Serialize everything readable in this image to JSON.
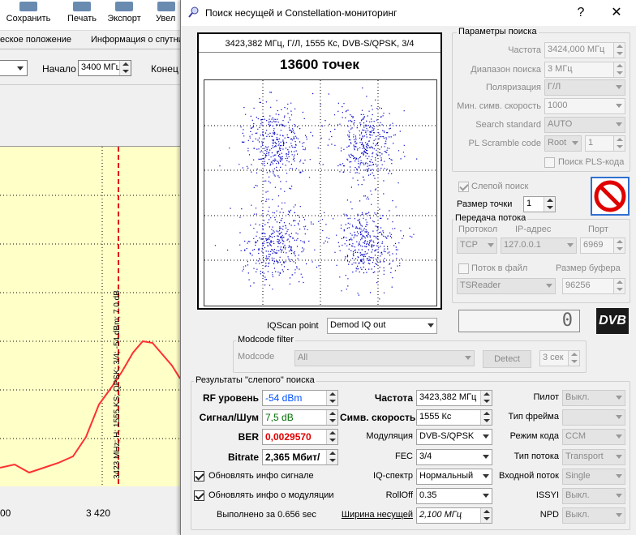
{
  "background_app": {
    "toolbar": [
      {
        "label": "Сохранить",
        "icon": "save-icon"
      },
      {
        "label": "Печать",
        "icon": "print-icon"
      },
      {
        "label": "Экспорт",
        "icon": "export-icon"
      },
      {
        "label": "Увел",
        "icon": "zoom-icon"
      }
    ],
    "tabs": [
      "еское положение",
      "Информация о спутни"
    ],
    "start_label": "Начало",
    "start_value": "3400 МГц",
    "end_label": "Конец",
    "marker_label": "3423 MHz; H; 1555 KS; QPSK; 3/4; -54 dBm; 7.0 dB",
    "x_ticks": [
      "00",
      "3 420"
    ]
  },
  "dialog": {
    "title": "Поиск несущей и Constellation-мониторинг",
    "help_btn": "?",
    "close_btn": "✕",
    "constellation": {
      "info": "3423,382 МГц, Г/Л, 1555 Кс, DVB-S/QPSK, 3/4",
      "points_label": "13600 точек",
      "clusters": [
        {
          "i": -0.5,
          "q": 0.5
        },
        {
          "i": 0.5,
          "q": 0.5
        },
        {
          "i": -0.5,
          "q": -0.5
        },
        {
          "i": 0.5,
          "q": -0.5
        }
      ],
      "point_color": "#0000c8"
    },
    "search_params": {
      "group_label": "Параметры поиска",
      "frequency_label": "Частота",
      "frequency_value": "3424,000 МГц",
      "range_label": "Диапазон поиска",
      "range_value": "3 МГц",
      "polarization_label": "Поляризация",
      "polarization_value": "Г/Л",
      "min_sr_label": "Мин. симв. скорость",
      "min_sr_value": "1000",
      "standard_label": "Search standard",
      "standard_value": "AUTO",
      "pls_label": "PL Scramble code",
      "pls_mode": "Root",
      "pls_value": "1",
      "pls_search_label": "Поиск PLS-кода"
    },
    "blind_search_label": "Слепой поиск",
    "point_size_label": "Размер точки",
    "point_size_value": "1",
    "stream": {
      "group_label": "Передача потока",
      "protocol_label": "Протокол",
      "ip_label": "IP-адрес",
      "port_label": "Порт",
      "protocol_value": "TCP",
      "ip_value": "127.0.0.1",
      "port_value": "6969",
      "file_label": "Поток в файл",
      "buffer_label": "Размер буфера",
      "reader_value": "TSReader",
      "buffer_value": "96256"
    },
    "counter_value": "0",
    "dvb_logo": "DVB",
    "iqscan_label": "IQScan point",
    "iqscan_value": "Demod IQ out",
    "modcode": {
      "group_label": "Modcode filter",
      "label": "Modcode",
      "value": "All",
      "detect_btn": "Detect",
      "seconds_value": "3 сек"
    },
    "results": {
      "group_label": "Результаты \"слепого\" поиска",
      "rf_label": "RF уровень",
      "rf_value": "-54 dBm",
      "snr_label": "Сигнал/Шум",
      "snr_value": "7,5 dB",
      "ber_label": "BER",
      "ber_value": "0,0029570",
      "bitrate_label": "Bitrate",
      "bitrate_value": "2,365 Мбит/",
      "freq_label": "Частота",
      "freq_value": "3423,382 МГц",
      "sr_label": "Симв. скорость",
      "sr_value": "1555 Кс",
      "modulation_label": "Модуляция",
      "modulation_value": "DVB-S/QPSK",
      "fec_label": "FEC",
      "fec_value": "3/4",
      "iq_label": "IQ-спектр",
      "iq_value": "Нормальный",
      "rolloff_label": "RollOff",
      "rolloff_value": "0.35",
      "bw_label": "Ширина несущей",
      "bw_value": "2,100 МГц",
      "pilot_label": "Пилот",
      "pilot_value": "Выкл.",
      "frame_label": "Тип фрейма",
      "frame_value": "",
      "codemode_label": "Режим кода",
      "codemode_value": "CCM",
      "streamtype_label": "Тип потока",
      "streamtype_value": "Transport",
      "input_label": "Входной поток",
      "input_value": "Single",
      "issyi_label": "ISSYI",
      "issyi_value": "Выкл.",
      "npd_label": "NPD",
      "npd_value": "Выкл.",
      "update_signal_label": "Обновлять инфо сигнале",
      "update_mod_label": "Обновлять инфо о модуляции",
      "done_label": "Выполнено за 0.656 sec"
    },
    "colors": {
      "rf": "#0050ff",
      "snr": "#007000",
      "ber": "#e00000",
      "bitrate": "#000000",
      "stop": "#e00000"
    }
  }
}
